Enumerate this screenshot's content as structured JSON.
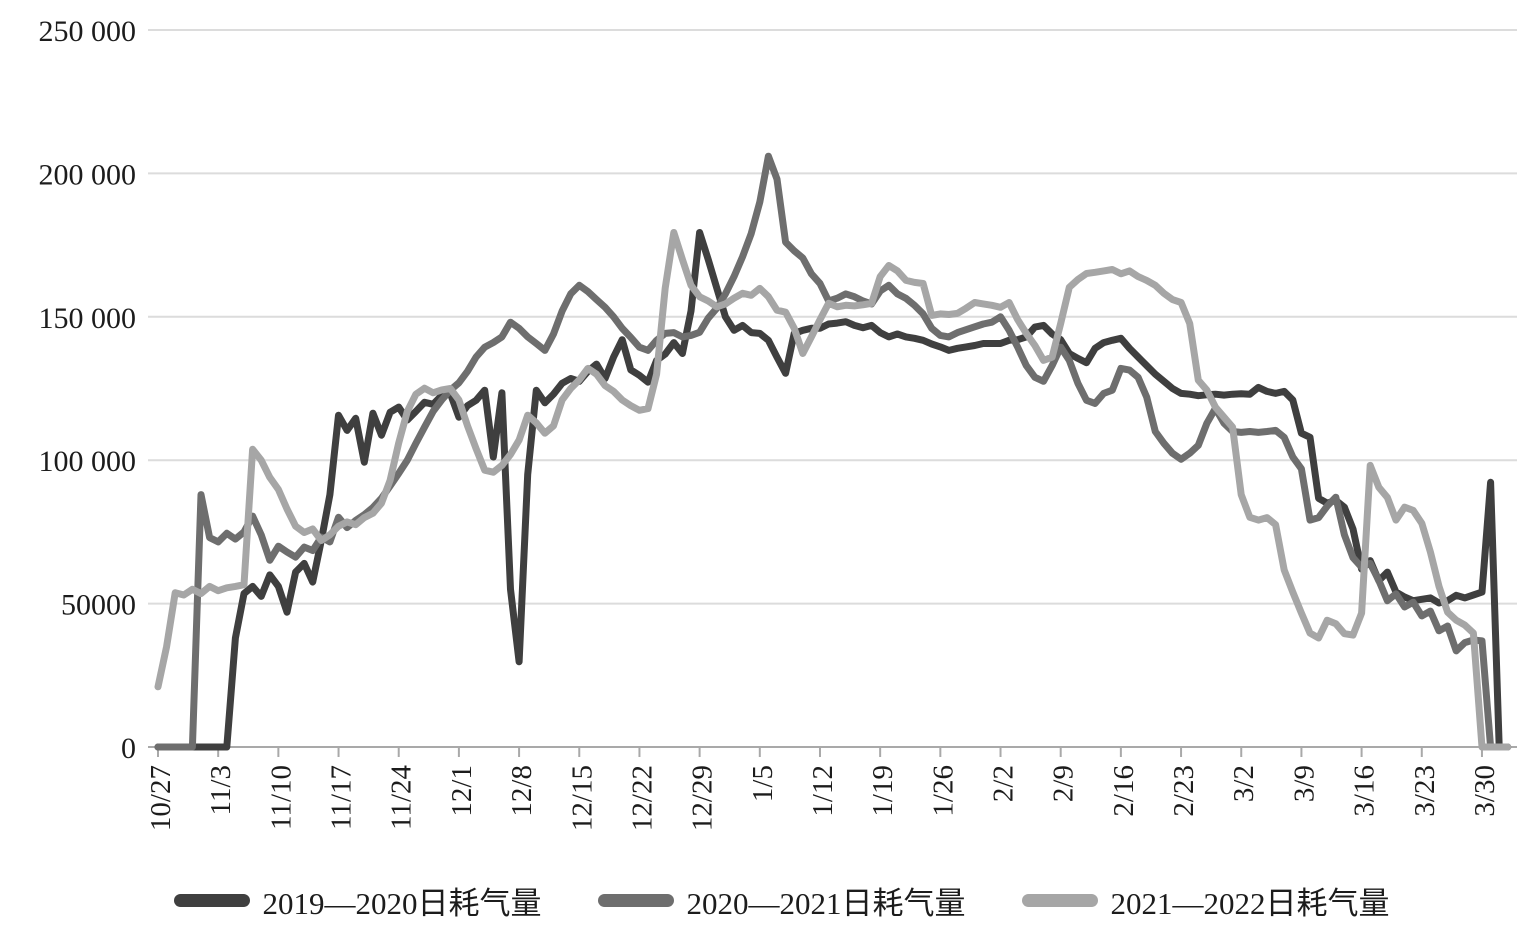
{
  "chart_data": {
    "type": "line",
    "title": "",
    "xlabel": "",
    "ylabel": "",
    "ylim": [
      0,
      250000
    ],
    "y_tick_step": 50000,
    "y_tick_labels": [
      "0",
      "50000",
      "100 000",
      "150 000",
      "200 000",
      "250 000"
    ],
    "x_tick_labels": [
      "10/27",
      "11/3",
      "11/10",
      "11/17",
      "11/24",
      "12/1",
      "12/8",
      "12/15",
      "12/22",
      "12/29",
      "1/5",
      "1/12",
      "1/19",
      "1/26",
      "2/2",
      "2/9",
      "2/16",
      "2/23",
      "3/2",
      "3/9",
      "3/16",
      "3/23",
      "3/30"
    ],
    "days_per_tick": 7,
    "grid": "horizontal-only",
    "legend_position": "bottom",
    "colors": {
      "background": "#ffffff",
      "gridline": "#dcdcdc",
      "axis": "#a9a9a9",
      "text": "#1c1c1c"
    },
    "series": [
      {
        "name": "2019—2020日耗气量",
        "color": "#3f3f3f",
        "values": [
          0,
          0,
          0,
          0,
          0,
          0,
          0,
          0,
          0,
          38000,
          53500,
          56000,
          52500,
          60000,
          56000,
          47000,
          61000,
          64000,
          57500,
          72000,
          88000,
          115700,
          110400,
          114600,
          99300,
          116400,
          108700,
          116700,
          118500,
          114000,
          117000,
          120200,
          119500,
          122600,
          123300,
          115000,
          119000,
          120900,
          124400,
          101100,
          123500,
          55000,
          29700,
          95000,
          124400,
          120000,
          123000,
          126800,
          128500,
          127500,
          131000,
          133500,
          128500,
          136000,
          142000,
          131500,
          129600,
          127200,
          134800,
          137000,
          141000,
          137200,
          152000,
          179400,
          170000,
          160000,
          150000,
          145300,
          147000,
          144500,
          144200,
          141800,
          135900,
          130300,
          144200,
          145300,
          146000,
          146000,
          147500,
          147800,
          148300,
          147000,
          146200,
          147000,
          144500,
          143000,
          144000,
          143000,
          142500,
          141800,
          140500,
          139500,
          138300,
          139000,
          139500,
          140000,
          140700,
          140700,
          140700,
          141800,
          142000,
          143000,
          146400,
          147000,
          144000,
          142000,
          137200,
          135500,
          134000,
          139000,
          141000,
          141800,
          142500,
          139000,
          136000,
          133000,
          130000,
          127500,
          125000,
          123300,
          123000,
          122500,
          122800,
          123000,
          122700,
          123000,
          123200,
          123000,
          125400,
          124000,
          123300,
          124000,
          121000,
          109400,
          108000,
          86700,
          85000,
          86000,
          83600,
          76000,
          62000,
          65000,
          58000,
          61000,
          54000,
          52300,
          51000,
          51500,
          52000,
          50200,
          51000,
          52900,
          52000,
          53000,
          54000,
          92300,
          0,
          null
        ]
      },
      {
        "name": "2020—2021日耗气量",
        "color": "#6e6e6e",
        "values": [
          0,
          0,
          0,
          0,
          0,
          88000,
          73000,
          71500,
          74500,
          72500,
          75000,
          80500,
          74000,
          65100,
          70000,
          68000,
          66200,
          69700,
          68500,
          73200,
          71500,
          80100,
          76500,
          79000,
          81000,
          83500,
          86700,
          91000,
          95400,
          100000,
          105900,
          111500,
          117000,
          121000,
          124400,
          127000,
          131000,
          136000,
          139400,
          141000,
          143000,
          148100,
          146000,
          143000,
          140700,
          138300,
          144000,
          152000,
          158000,
          161000,
          158800,
          156000,
          153300,
          150000,
          146000,
          142800,
          139400,
          138300,
          141800,
          144200,
          144500,
          143000,
          143500,
          144600,
          149500,
          153000,
          158000,
          164000,
          171000,
          179000,
          190000,
          206000,
          198000,
          176000,
          173000,
          170500,
          165000,
          161600,
          155500,
          156500,
          158000,
          157000,
          155500,
          154500,
          159000,
          161000,
          158000,
          156400,
          154000,
          151000,
          146000,
          143500,
          143000,
          144500,
          145500,
          146500,
          147500,
          148100,
          150000,
          145300,
          139400,
          133000,
          128900,
          127500,
          133000,
          139400,
          134800,
          126800,
          120900,
          119800,
          123300,
          124400,
          132000,
          131400,
          128900,
          122000,
          110000,
          105900,
          102400,
          100300,
          102400,
          105200,
          112900,
          118100,
          112900,
          110000,
          109700,
          110000,
          109700,
          110000,
          110400,
          108000,
          101100,
          97000,
          79100,
          80000,
          84000,
          87100,
          74000,
          66000,
          62700,
          64000,
          58100,
          51000,
          53400,
          48800,
          50500,
          45700,
          47400,
          40500,
          42200,
          33500,
          36400,
          37300,
          37000,
          0,
          0,
          0
        ]
      },
      {
        "name": "2021—2022日耗气量",
        "color": "#a6a6a6",
        "values": [
          21000,
          35000,
          53800,
          53000,
          55000,
          53500,
          56000,
          54500,
          55500,
          56000,
          56600,
          103800,
          100000,
          94000,
          89800,
          83000,
          77000,
          74800,
          76000,
          72000,
          74000,
          77000,
          78500,
          77500,
          80000,
          81500,
          85000,
          93000,
          106000,
          117000,
          123000,
          125100,
          123500,
          124500,
          125000,
          121000,
          112000,
          104000,
          96500,
          95800,
          98200,
          102000,
          107000,
          115700,
          113000,
          109400,
          112000,
          121000,
          125000,
          128000,
          132000,
          130000,
          126000,
          124000,
          121000,
          119000,
          117400,
          118000,
          130000,
          160000,
          179400,
          170000,
          161000,
          157000,
          155500,
          153500,
          154500,
          156500,
          158200,
          157500,
          159900,
          157000,
          152300,
          151600,
          146000,
          137200,
          143000,
          149000,
          154700,
          153500,
          154000,
          153800,
          154200,
          154700,
          164000,
          167900,
          166000,
          162700,
          162000,
          161600,
          150500,
          151000,
          150800,
          151200,
          153000,
          155000,
          154500,
          154000,
          153300,
          155000,
          149000,
          144200,
          140000,
          134800,
          135900,
          147700,
          160300,
          163000,
          165100,
          165500,
          166000,
          166500,
          165000,
          166000,
          164000,
          162700,
          161000,
          158200,
          156000,
          155000,
          147700,
          127900,
          124400,
          118500,
          115000,
          111500,
          88000,
          80100,
          79100,
          80000,
          77500,
          61700,
          54000,
          46700,
          39700,
          38000,
          44200,
          43000,
          39500,
          39000,
          46700,
          98200,
          90600,
          87000,
          79100,
          83600,
          82500,
          78000,
          68000,
          56000,
          47000,
          44200,
          42500,
          39700,
          0,
          0,
          0,
          0
        ]
      }
    ]
  }
}
